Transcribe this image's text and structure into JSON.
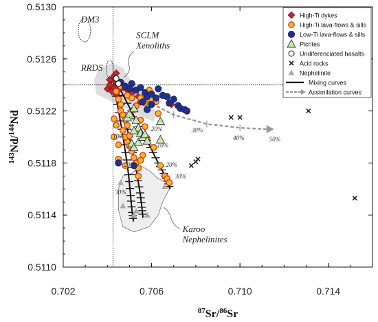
{
  "chart_data": {
    "type": "scatter",
    "xlim": [
      0.702,
      0.716
    ],
    "ylim": [
      0.511,
      0.513
    ],
    "x_ticks": [
      "0.702",
      "0.706",
      "0.710",
      "0.714"
    ],
    "y_ticks": [
      "0.5110",
      "0.5114",
      "0.5118",
      "0.5122",
      "0.5126",
      "0.5130"
    ],
    "xlabel_parts": [
      {
        "text": "87",
        "sup": true
      },
      {
        "text": "Sr/",
        "sup": false
      },
      {
        "text": "86",
        "sup": true
      },
      {
        "text": "Sr",
        "sup": false
      }
    ],
    "ylabel_parts": [
      {
        "text": "143",
        "sup": true
      },
      {
        "text": "Nd/",
        "sup": false
      },
      {
        "text": "144",
        "sup": true
      },
      {
        "text": "Nd",
        "sup": false
      }
    ],
    "reference_lines": {
      "x": 0.70425,
      "y": 0.5124
    },
    "annotations": [
      {
        "text": "DM3",
        "x": 0.7028,
        "y": 0.51288,
        "size": 13
      },
      {
        "text": "SCLM",
        "x": 0.7053,
        "y": 0.51276,
        "size": 13
      },
      {
        "text": "Xenoliths",
        "x": 0.7053,
        "y": 0.51268,
        "size": 13
      },
      {
        "text": "RRDS",
        "x": 0.7028,
        "y": 0.51251,
        "size": 13
      },
      {
        "text": "Karoo",
        "x": 0.7074,
        "y": 0.51127,
        "size": 13
      },
      {
        "text": "Nephelinites",
        "x": 0.7074,
        "y": 0.51119,
        "size": 13
      }
    ],
    "assimilation_labels": [
      {
        "text": "20%",
        "x": 0.70598,
        "y": 0.51212
      },
      {
        "text": "30%",
        "x": 0.70781,
        "y": 0.51211
      },
      {
        "text": "40%",
        "x": 0.70969,
        "y": 0.51205
      },
      {
        "text": "50%",
        "x": 0.71132,
        "y": 0.51204
      }
    ],
    "mixing_labels": [
      {
        "text": "10%",
        "x": 0.70425,
        "y": 0.51199
      },
      {
        "text": "20%",
        "x": 0.70475,
        "y": 0.51177
      },
      {
        "text": "30%",
        "x": 0.70434,
        "y": 0.51156
      },
      {
        "text": "10%",
        "x": 0.70625,
        "y": 0.51192
      },
      {
        "text": "20%",
        "x": 0.70665,
        "y": 0.51177
      },
      {
        "text": "30%",
        "x": 0.70706,
        "y": 0.51168
      }
    ],
    "legend": [
      {
        "label": "High-Ti dykes",
        "marker": "diamond-red"
      },
      {
        "label": "High-Ti lava-flows  & sills",
        "marker": "circle-orange"
      },
      {
        "label": "Low-Ti lava-flows & sills",
        "marker": "circle-navy"
      },
      {
        "label": "Picrites",
        "marker": "triangle-open"
      },
      {
        "label": "Undiferenciated basalts",
        "marker": "circle-open"
      },
      {
        "label": "Acid rocks",
        "marker": "cross"
      },
      {
        "label": "Nephelinite",
        "marker": "triangle-gray"
      },
      {
        "label": "Mixing curves",
        "marker": "line-solid"
      },
      {
        "label": "Assimilation curves",
        "marker": "line-dashed-arrow"
      }
    ],
    "series": [
      {
        "name": "High-Ti dykes",
        "marker": "diamond-red",
        "points": [
          [
            0.704,
            0.51237
          ],
          [
            0.7041,
            0.5124
          ],
          [
            0.7042,
            0.51235
          ],
          [
            0.7042,
            0.51244
          ],
          [
            0.7043,
            0.51238
          ],
          [
            0.7043,
            0.51247
          ],
          [
            0.7044,
            0.51242
          ],
          [
            0.7045,
            0.51236
          ],
          [
            0.7046,
            0.5124
          ],
          [
            0.7047,
            0.51238
          ],
          [
            0.7049,
            0.51236
          ],
          [
            0.7051,
            0.51234
          ],
          [
            0.7054,
            0.51231
          ],
          [
            0.7044,
            0.51249
          ],
          [
            0.7041,
            0.51244
          ],
          [
            0.7044,
            0.51233
          ],
          [
            0.7055,
            0.51227
          ],
          [
            0.7069,
            0.51225
          ]
        ]
      },
      {
        "name": "High-Ti lava-flows & sills",
        "marker": "circle-orange",
        "points": [
          [
            0.7044,
            0.51235
          ],
          [
            0.7045,
            0.51229
          ],
          [
            0.7046,
            0.51225
          ],
          [
            0.7046,
            0.5122
          ],
          [
            0.7047,
            0.51217
          ],
          [
            0.7048,
            0.51213
          ],
          [
            0.7049,
            0.51209
          ],
          [
            0.7047,
            0.51205
          ],
          [
            0.7048,
            0.512
          ],
          [
            0.7049,
            0.51196
          ],
          [
            0.705,
            0.51201
          ],
          [
            0.705,
            0.51193
          ],
          [
            0.7051,
            0.51189
          ],
          [
            0.7052,
            0.51184
          ],
          [
            0.7053,
            0.5118
          ],
          [
            0.7054,
            0.51176
          ],
          [
            0.7055,
            0.51182
          ],
          [
            0.7054,
            0.5117
          ],
          [
            0.7045,
            0.51194
          ],
          [
            0.7043,
            0.512
          ],
          [
            0.7044,
            0.51209
          ],
          [
            0.7043,
            0.51214
          ],
          [
            0.7045,
            0.51183
          ],
          [
            0.7048,
            0.51178
          ],
          [
            0.7051,
            0.5123
          ],
          [
            0.7053,
            0.51224
          ],
          [
            0.7055,
            0.5123
          ],
          [
            0.7057,
            0.51234
          ],
          [
            0.7059,
            0.51236
          ],
          [
            0.706,
            0.51229
          ],
          [
            0.7062,
            0.51227
          ],
          [
            0.7057,
            0.51226
          ],
          [
            0.7063,
            0.51218
          ],
          [
            0.7066,
            0.5117
          ],
          [
            0.7067,
            0.51168
          ],
          [
            0.7068,
            0.51165
          ],
          [
            0.7046,
            0.51239
          ],
          [
            0.7049,
            0.51232
          ],
          [
            0.7052,
            0.51221
          ],
          [
            0.7055,
            0.51213
          ],
          [
            0.7057,
            0.51208
          ],
          [
            0.7054,
            0.51205
          ],
          [
            0.7058,
            0.51199
          ],
          [
            0.7056,
            0.51186
          ],
          [
            0.7061,
            0.51192
          ],
          [
            0.7064,
            0.51178
          ]
        ]
      },
      {
        "name": "Low-Ti lava-flows & sills",
        "marker": "circle-navy",
        "points": [
          [
            0.7046,
            0.51242
          ],
          [
            0.7048,
            0.51239
          ],
          [
            0.705,
            0.51237
          ],
          [
            0.7051,
            0.51241
          ],
          [
            0.7053,
            0.51236
          ],
          [
            0.7055,
            0.51238
          ],
          [
            0.7057,
            0.51234
          ],
          [
            0.7058,
            0.51231
          ],
          [
            0.706,
            0.51233
          ],
          [
            0.7062,
            0.5123
          ],
          [
            0.7063,
            0.51237
          ],
          [
            0.7065,
            0.51232
          ],
          [
            0.7067,
            0.51231
          ],
          [
            0.7068,
            0.51226
          ],
          [
            0.707,
            0.51229
          ],
          [
            0.7072,
            0.51224
          ],
          [
            0.7073,
            0.51222
          ],
          [
            0.7075,
            0.51221
          ],
          [
            0.7076,
            0.5122
          ],
          [
            0.706,
            0.51225
          ],
          [
            0.7056,
            0.51227
          ],
          [
            0.7045,
            0.5118
          ],
          [
            0.7052,
            0.51178
          ],
          [
            0.7058,
            0.51221
          ]
        ]
      },
      {
        "name": "Picrites",
        "marker": "triangle-open",
        "points": [
          [
            0.7049,
            0.51215
          ],
          [
            0.705,
            0.51218
          ],
          [
            0.7052,
            0.51222
          ],
          [
            0.7053,
            0.51213
          ],
          [
            0.7054,
            0.51207
          ],
          [
            0.7055,
            0.51203
          ],
          [
            0.7052,
            0.51205
          ],
          [
            0.7051,
            0.51195
          ],
          [
            0.7052,
            0.51192
          ],
          [
            0.7054,
            0.51196
          ],
          [
            0.7056,
            0.512
          ],
          [
            0.7057,
            0.51202
          ],
          [
            0.7058,
            0.51197
          ],
          [
            0.7064,
            0.51212
          ],
          [
            0.7064,
            0.51198
          ]
        ]
      },
      {
        "name": "Undiferenciated basalts",
        "marker": "circle-open",
        "points": [
          [
            0.7044,
            0.51245
          ],
          [
            0.7045,
            0.51241
          ]
        ]
      },
      {
        "name": "Acid rocks",
        "marker": "cross",
        "points": [
          [
            0.7078,
            0.51178
          ],
          [
            0.708,
            0.51181
          ],
          [
            0.7081,
            0.51183
          ],
          [
            0.7096,
            0.51215
          ],
          [
            0.71,
            0.51215
          ],
          [
            0.7131,
            0.5122
          ],
          [
            0.7152,
            0.51153
          ]
        ]
      },
      {
        "name": "Nephelinite",
        "marker": "triangle-gray",
        "points": [
          [
            0.7047,
            0.51147
          ],
          [
            0.7052,
            0.5114
          ],
          [
            0.7058,
            0.5114
          ],
          [
            0.7046,
            0.51165
          ],
          [
            0.7053,
            0.51143
          ],
          [
            0.7066,
            0.51162
          ]
        ]
      }
    ],
    "mixing_curves": [
      [
        [
          0.70425,
          0.51244
        ],
        [
          0.70445,
          0.51225
        ],
        [
          0.70465,
          0.51206
        ],
        [
          0.70482,
          0.51188
        ],
        [
          0.70496,
          0.51171
        ],
        [
          0.70505,
          0.51155
        ],
        [
          0.70512,
          0.51142
        ],
        [
          0.70518,
          0.51135
        ]
      ],
      [
        [
          0.7043,
          0.51244
        ],
        [
          0.7046,
          0.51225
        ],
        [
          0.7049,
          0.51206
        ],
        [
          0.70515,
          0.51188
        ],
        [
          0.70534,
          0.51171
        ],
        [
          0.70548,
          0.51157
        ],
        [
          0.70556,
          0.51146
        ],
        [
          0.70561,
          0.51138
        ]
      ],
      [
        [
          0.70435,
          0.51244
        ],
        [
          0.7049,
          0.51226
        ],
        [
          0.70545,
          0.51208
        ],
        [
          0.70595,
          0.51192
        ],
        [
          0.7063,
          0.5118
        ],
        [
          0.70655,
          0.51172
        ],
        [
          0.70672,
          0.51166
        ],
        [
          0.70684,
          0.5116
        ]
      ]
    ],
    "assimilation_curve": [
      [
        0.70425,
        0.51241
      ],
      [
        0.7055,
        0.5123
      ],
      [
        0.707,
        0.51217
      ],
      [
        0.7085,
        0.5121
      ],
      [
        0.71,
        0.51207
      ],
      [
        0.7112,
        0.51206
      ]
    ]
  }
}
